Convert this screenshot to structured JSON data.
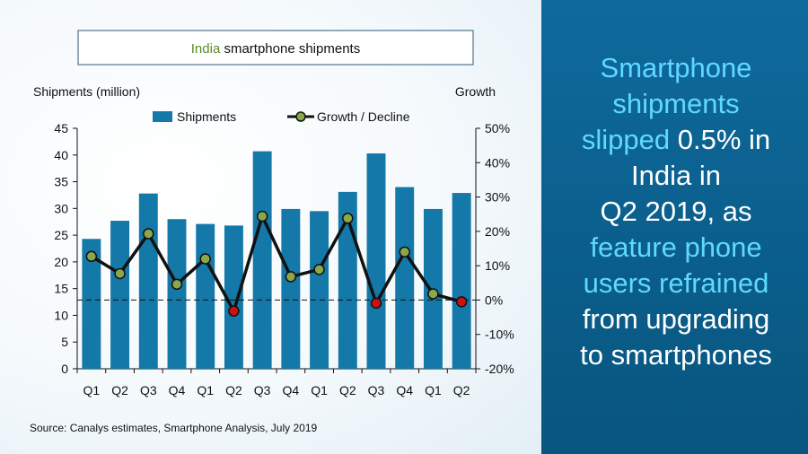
{
  "chart_data": {
    "type": "bar",
    "title_parts": {
      "country": "India",
      "rest": " smartphone  shipments"
    },
    "ylabel": "Shipments (million)",
    "y2label": "Growth",
    "categories": [
      "Q1",
      "Q2",
      "Q3",
      "Q4",
      "Q1",
      "Q2",
      "Q3",
      "Q4",
      "Q1",
      "Q2",
      "Q3",
      "Q4",
      "Q1",
      "Q2"
    ],
    "ylim": [
      0,
      45
    ],
    "yticks": [
      "0",
      "5",
      "10",
      "15",
      "20",
      "25",
      "30",
      "35",
      "40",
      "45"
    ],
    "y2lim": [
      -20,
      50
    ],
    "y2ticks": [
      "-20%",
      "-10%",
      "0%",
      "10%",
      "20%",
      "30%",
      "40%",
      "50%"
    ],
    "series": [
      {
        "name": "Shipments",
        "kind": "bar",
        "color": "#1478a8",
        "values": [
          24.3,
          27.7,
          32.8,
          28.0,
          27.1,
          26.8,
          40.7,
          29.9,
          29.5,
          33.1,
          40.3,
          34.0,
          29.9,
          32.9
        ]
      },
      {
        "name": "Growth / Decline",
        "kind": "line",
        "color": "#111111",
        "marker_color": "#8aa84a",
        "negative_marker_color": "#cc1111",
        "values": [
          12.7,
          7.7,
          19.3,
          4.6,
          12.0,
          -3.2,
          24.4,
          6.8,
          8.9,
          23.8,
          -0.9,
          14.0,
          1.8,
          -0.5
        ]
      }
    ],
    "legend_placement": "top",
    "grid": false,
    "zero_line_style": "dashed",
    "source": "Source:  Canalys estimates, Smartphone  Analysis, July 2019"
  },
  "side_text": {
    "line1": "Smartphone",
    "line2": "shipments",
    "line3_a": "slipped",
    "line3_b": " 0.5% in",
    "line4": "India in",
    "line5": "Q2 2019, as",
    "line6": "feature phone",
    "line7": "users refrained",
    "line8": "from upgrading",
    "line9": "to smartphones"
  }
}
